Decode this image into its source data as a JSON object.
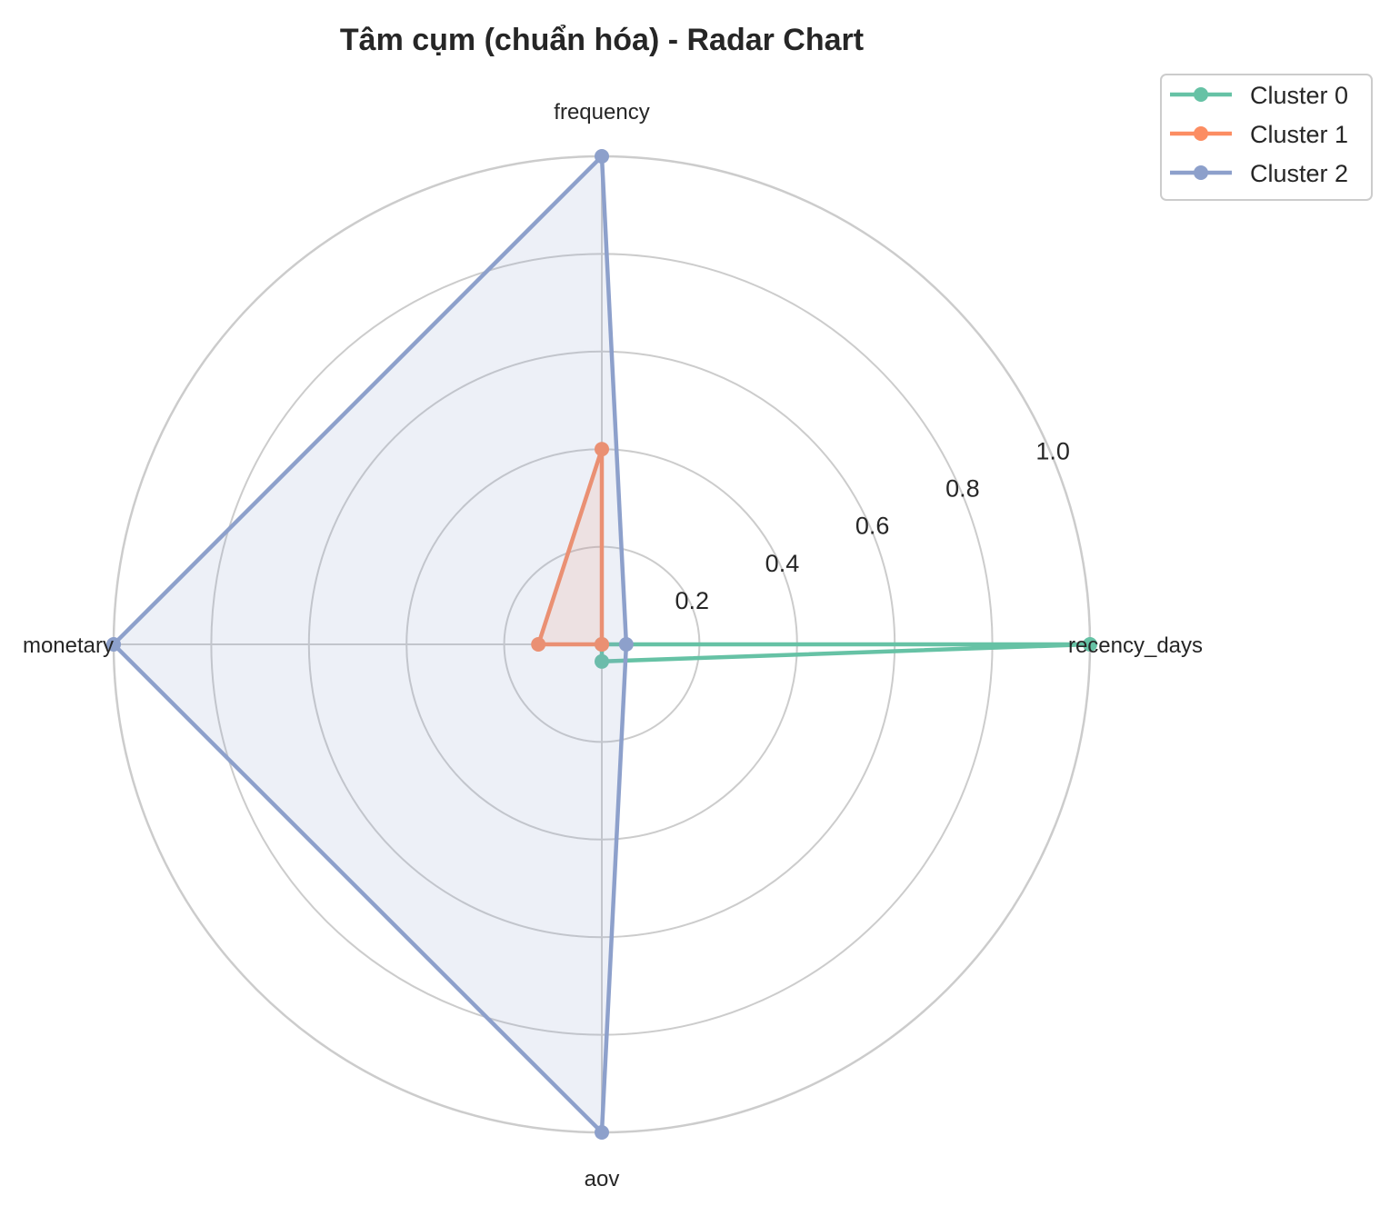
{
  "chart_data": {
    "type": "radar",
    "title": "Tâm cụm (chuẩn hóa) - Radar Chart",
    "axes": [
      "recency_days",
      "frequency",
      "monetary",
      "aov"
    ],
    "rlim": [
      0,
      1.0
    ],
    "r_ticks": [
      "0.2",
      "0.4",
      "0.6",
      "0.8",
      "1.0"
    ],
    "r_tick_values": [
      0.2,
      0.4,
      0.6,
      0.8,
      1.0
    ],
    "grid": true,
    "legend_position": "top-right",
    "series": [
      {
        "name": "Cluster 0",
        "color": "#66c2a5",
        "fill": false,
        "values": [
          1.0,
          0.0,
          0.0,
          0.035
        ]
      },
      {
        "name": "Cluster 1",
        "color": "#fc8d62",
        "fill": true,
        "values": [
          0.0,
          0.4,
          0.13,
          0.0
        ]
      },
      {
        "name": "Cluster 2",
        "color": "#8da0cb",
        "fill": true,
        "values": [
          0.05,
          1.0,
          1.0,
          1.0
        ]
      }
    ]
  }
}
